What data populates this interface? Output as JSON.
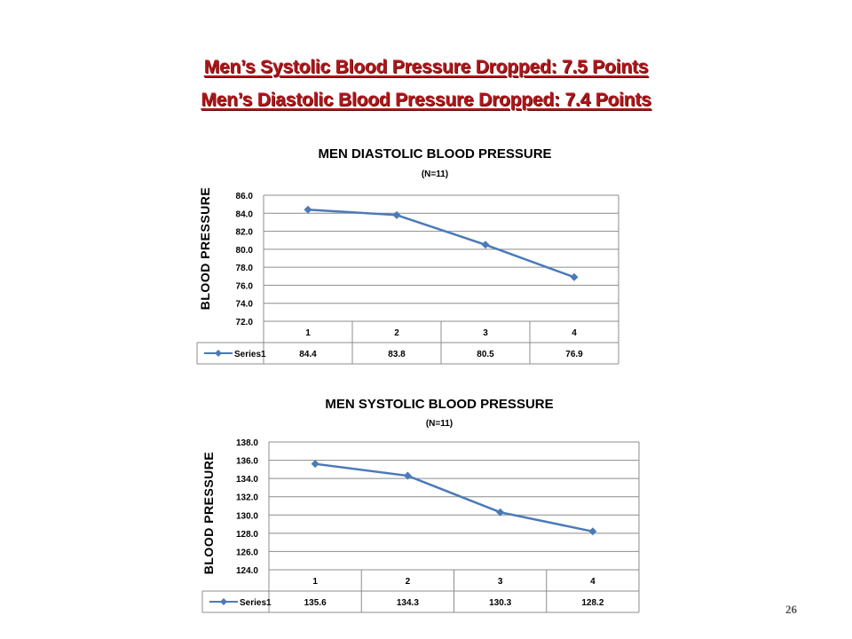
{
  "headlines": {
    "systolic": "Men’s Systolic Blood Pressure Dropped:  7.5 Points",
    "diastolic": "Men’s Diastolic Blood Pressure Dropped:  7.4 Points"
  },
  "page_number": "26",
  "colors": {
    "headline": "#b0161b",
    "series": "#4a7ab8",
    "grid": "#8c8c8c"
  },
  "chart_data": [
    {
      "type": "line",
      "title": "MEN DIASTOLIC BLOOD PRESSURE",
      "subtitle": "(N=11)",
      "ylabel": "BLOOD PRESSURE",
      "xlabel": "",
      "ylim": [
        72.0,
        86.0
      ],
      "ytick_step": 2.0,
      "grid": true,
      "legend": "data-table",
      "categories": [
        "1",
        "2",
        "3",
        "4"
      ],
      "series": [
        {
          "name": "Series1",
          "values": [
            84.4,
            83.8,
            80.5,
            76.9
          ],
          "labels": [
            "84.4",
            "83.8",
            "80.5",
            "76.9"
          ]
        }
      ]
    },
    {
      "type": "line",
      "title": "MEN SYSTOLIC BLOOD PRESSURE",
      "subtitle": "(N=11)",
      "ylabel": "BLOOD PRESSURE",
      "xlabel": "",
      "ylim": [
        124.0,
        138.0
      ],
      "ytick_step": 2.0,
      "grid": true,
      "legend": "data-table",
      "categories": [
        "1",
        "2",
        "3",
        "4"
      ],
      "series": [
        {
          "name": "Series1",
          "values": [
            135.6,
            134.3,
            130.3,
            128.2
          ],
          "labels": [
            "135.6",
            "134.3",
            "130.3",
            "128.2"
          ]
        }
      ]
    }
  ]
}
